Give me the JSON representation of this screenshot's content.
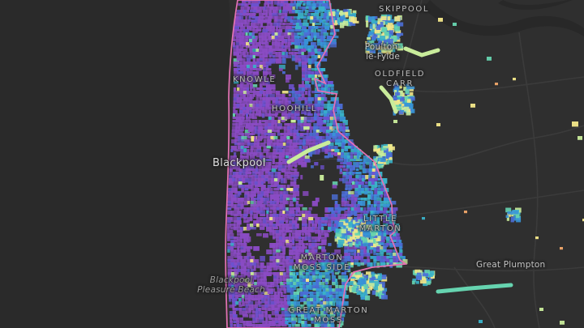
{
  "map": {
    "labels": [
      {
        "id": "skippool",
        "kind": "district",
        "lines": [
          "SKIPPOOL"
        ]
      },
      {
        "id": "poulton",
        "kind": "town",
        "lines": [
          "Poulton-",
          "le-Fylde"
        ]
      },
      {
        "id": "oldfield-carr",
        "kind": "district",
        "lines": [
          "OLDFIELD",
          "CARR"
        ]
      },
      {
        "id": "knowle",
        "kind": "district",
        "lines": [
          "KNOWLE"
        ]
      },
      {
        "id": "hoohill",
        "kind": "district",
        "lines": [
          "HOOHILL"
        ]
      },
      {
        "id": "blackpool",
        "kind": "city",
        "lines": [
          "Blackpool"
        ]
      },
      {
        "id": "little-marton",
        "kind": "district",
        "lines": [
          "LITTLE",
          "MARTON"
        ]
      },
      {
        "id": "marton-moss",
        "kind": "district",
        "lines": [
          "MARTON",
          "MOSS SIDE"
        ]
      },
      {
        "id": "pleasure-beach",
        "kind": "poi",
        "lines": [
          "Blackpool",
          "Pleasure Beach"
        ]
      },
      {
        "id": "great-plumpton",
        "kind": "town",
        "lines": [
          "Great Plumpton"
        ]
      },
      {
        "id": "great-marton",
        "kind": "district",
        "lines": [
          "GREAT MARTON",
          "MOSS"
        ]
      }
    ],
    "colors": {
      "sea": "#2a2a2a",
      "land": "#2f2f2f",
      "road": "#3a3a3a",
      "boundary": "#e472b4",
      "ramp": [
        "#8a4bc4",
        "#6d52d0",
        "#4c6fd8",
        "#3893d8",
        "#3ab2c9",
        "#66d4b0",
        "#c9ec9b",
        "#f4e88a",
        "#f2a86a"
      ]
    }
  }
}
